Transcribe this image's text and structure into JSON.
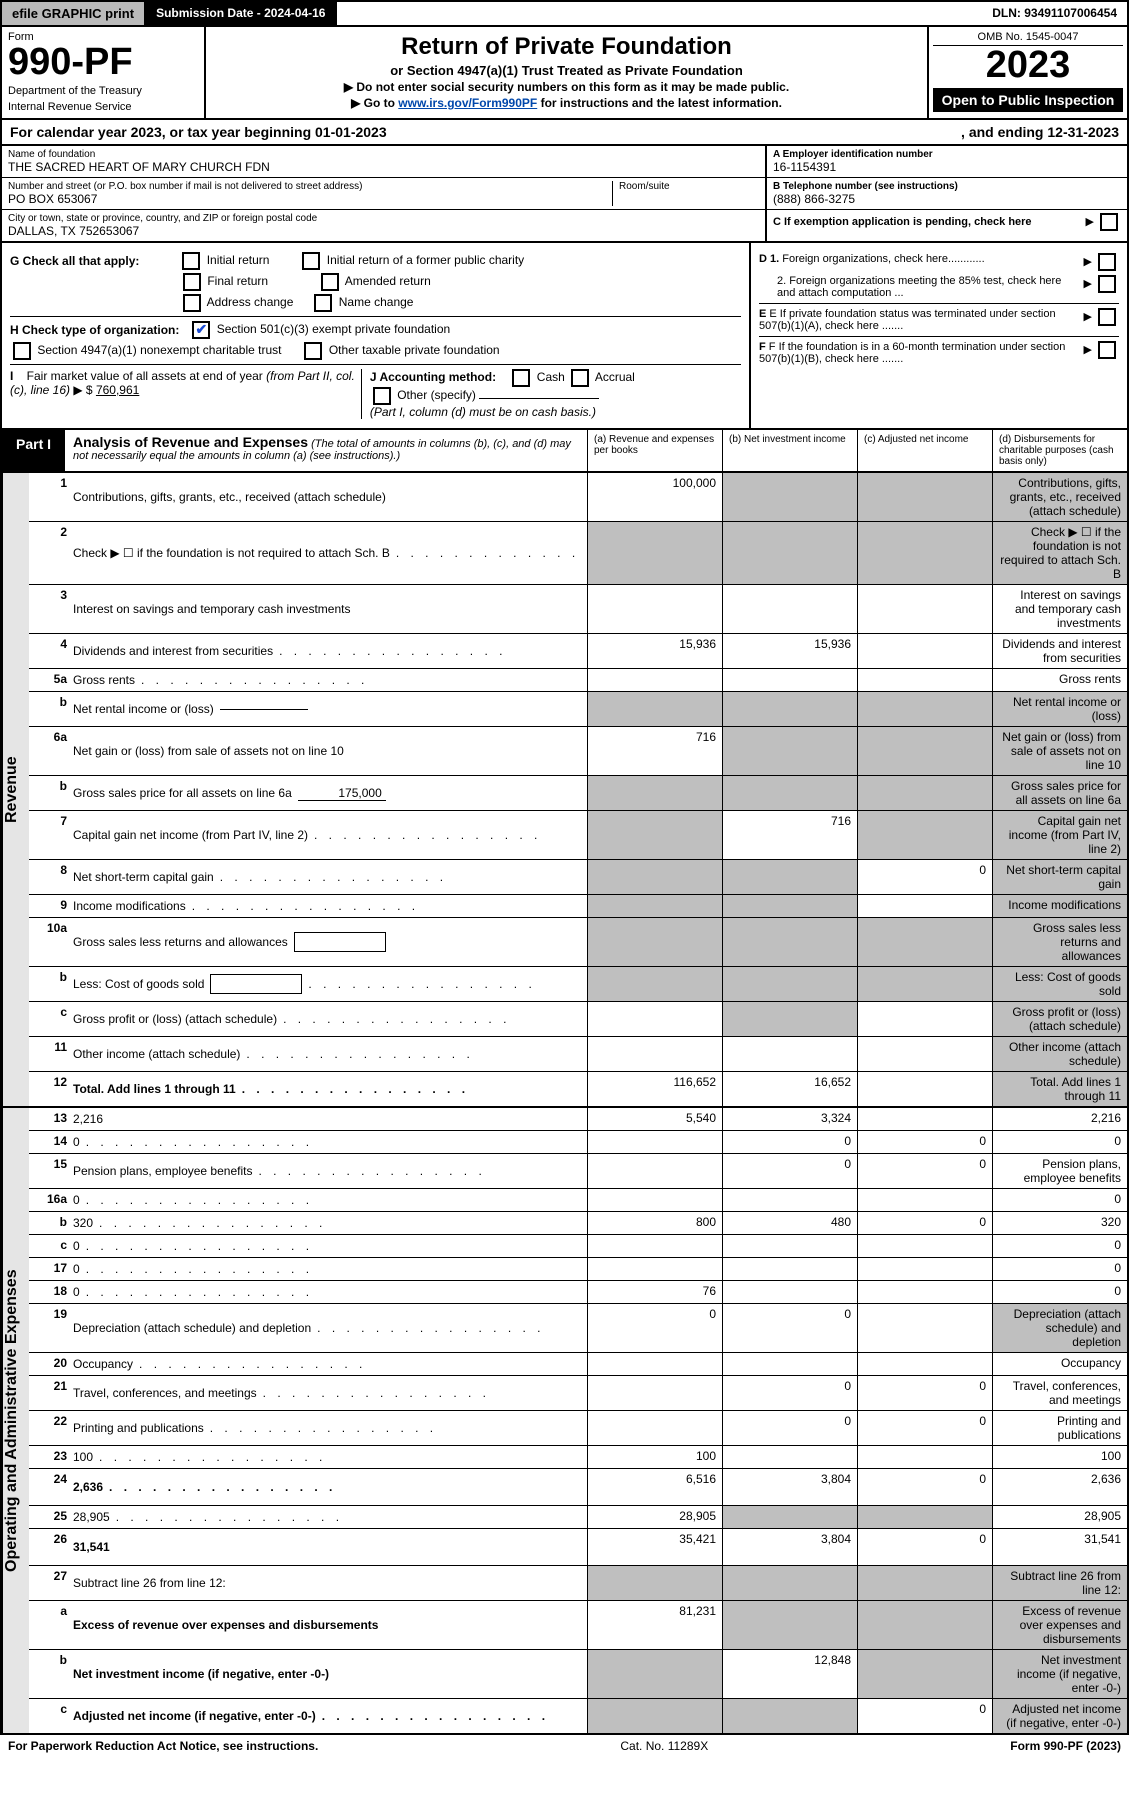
{
  "topbar": {
    "efile": "efile GRAPHIC print",
    "submission": "Submission Date - 2024-04-16",
    "dln": "DLN: 93491107006454"
  },
  "header": {
    "form_word": "Form",
    "form_num": "990-PF",
    "dept": "Department of the Treasury",
    "irs": "Internal Revenue Service",
    "title": "Return of Private Foundation",
    "subtitle": "or Section 4947(a)(1) Trust Treated as Private Foundation",
    "note1": "▶ Do not enter social security numbers on this form as it may be made public.",
    "note2_pre": "▶ Go to ",
    "note2_link": "www.irs.gov/Form990PF",
    "note2_post": " for instructions and the latest information.",
    "omb": "OMB No. 1545-0047",
    "year": "2023",
    "open": "Open to Public Inspection"
  },
  "calyear": {
    "left": "For calendar year 2023, or tax year beginning 01-01-2023",
    "right": ", and ending 12-31-2023"
  },
  "meta": {
    "name_label": "Name of foundation",
    "name": "THE SACRED HEART OF MARY CHURCH FDN",
    "addr_label": "Number and street (or P.O. box number if mail is not delivered to street address)",
    "addr": "PO BOX 653067",
    "room_label": "Room/suite",
    "city_label": "City or town, state or province, country, and ZIP or foreign postal code",
    "city": "DALLAS, TX  752653067",
    "ein_label": "A Employer identification number",
    "ein": "16-1154391",
    "phone_label": "B Telephone number (see instructions)",
    "phone": "(888) 866-3275",
    "c_label": "C If exemption application is pending, check here"
  },
  "checks": {
    "g_lead": "G Check all that apply:",
    "g_items": [
      "Initial return",
      "Initial return of a former public charity",
      "Final return",
      "Amended return",
      "Address change",
      "Name change"
    ],
    "h_lead": "H Check type of organization:",
    "h1": "Section 501(c)(3) exempt private foundation",
    "h2": "Section 4947(a)(1) nonexempt charitable trust",
    "h3": "Other taxable private foundation",
    "i_lead": "I Fair market value of all assets at end of year (from Part II, col. (c), line 16) ▶ $",
    "i_val": "760,961",
    "j_lead": "J Accounting method:",
    "j_cash": "Cash",
    "j_accr": "Accrual",
    "j_other": "Other (specify)",
    "j_note": "(Part I, column (d) must be on cash basis.)",
    "d1": "D 1. Foreign organizations, check here............",
    "d2": "2. Foreign organizations meeting the 85% test, check here and attach computation ...",
    "e": "E If private foundation status was terminated under section 507(b)(1)(A), check here .......",
    "f": "F If the foundation is in a 60-month termination under section 507(b)(1)(B), check here ......."
  },
  "part1": {
    "tab": "Part I",
    "title": "Analysis of Revenue and Expenses",
    "note": "(The total of amounts in columns (b), (c), and (d) may not necessarily equal the amounts in column (a) (see instructions).)",
    "cols": {
      "a": "(a) Revenue and expenses per books",
      "b": "(b) Net investment income",
      "c": "(c) Adjusted net income",
      "d": "(d) Disbursements for charitable purposes (cash basis only)"
    }
  },
  "side": {
    "rev": "Revenue",
    "exp": "Operating and Administrative Expenses"
  },
  "rows": {
    "r1": {
      "n": "1",
      "d": "Contributions, gifts, grants, etc., received (attach schedule)",
      "a": "100,000",
      "shade_b": true,
      "shade_c": true,
      "shade_d": true,
      "tall": true
    },
    "r2": {
      "n": "2",
      "d": "Check ▶ ☐ if the foundation is not required to attach Sch. B",
      "shade_a": true,
      "shade_b": true,
      "shade_c": true,
      "shade_d": true,
      "tall": true,
      "dots": true,
      "bold_not": true
    },
    "r3": {
      "n": "3",
      "d": "Interest on savings and temporary cash investments"
    },
    "r4": {
      "n": "4",
      "d": "Dividends and interest from securities",
      "a": "15,936",
      "b": "15,936",
      "dots": true
    },
    "r5a": {
      "n": "5a",
      "d": "Gross rents",
      "dots": true
    },
    "r5b": {
      "n": "b",
      "d": "Net rental income or (loss)",
      "subinput": true,
      "shade_a": true,
      "shade_b": true,
      "shade_c": true,
      "shade_d": true
    },
    "r6a": {
      "n": "6a",
      "d": "Net gain or (loss) from sale of assets not on line 10",
      "a": "716",
      "shade_b": true,
      "shade_c": true,
      "shade_d": true
    },
    "r6b": {
      "n": "b",
      "d": "Gross sales price for all assets on line 6a",
      "subval": "175,000",
      "shade_a": true,
      "shade_b": true,
      "shade_c": true,
      "shade_d": true
    },
    "r7": {
      "n": "7",
      "d": "Capital gain net income (from Part IV, line 2)",
      "b": "716",
      "shade_a": true,
      "shade_c": true,
      "shade_d": true,
      "dots": true
    },
    "r8": {
      "n": "8",
      "d": "Net short-term capital gain",
      "c": "0",
      "shade_a": true,
      "shade_b": true,
      "shade_d": true,
      "dots": true
    },
    "r9": {
      "n": "9",
      "d": "Income modifications",
      "shade_a": true,
      "shade_b": true,
      "shade_d": true,
      "dots": true
    },
    "r10a": {
      "n": "10a",
      "d": "Gross sales less returns and allowances",
      "inlinebox": true,
      "shade_a": true,
      "shade_b": true,
      "shade_c": true,
      "shade_d": true
    },
    "r10b": {
      "n": "b",
      "d": "Less: Cost of goods sold",
      "inlinebox": true,
      "shade_a": true,
      "shade_b": true,
      "shade_c": true,
      "shade_d": true,
      "dots": true
    },
    "r10c": {
      "n": "c",
      "d": "Gross profit or (loss) (attach schedule)",
      "shade_b": true,
      "shade_d": true,
      "dots": true
    },
    "r11": {
      "n": "11",
      "d": "Other income (attach schedule)",
      "shade_d": true,
      "dots": true
    },
    "r12": {
      "n": "12",
      "d": "Total. Add lines 1 through 11",
      "a": "116,652",
      "b": "16,652",
      "bold": true,
      "shade_d": true,
      "dots": true
    },
    "r13": {
      "n": "13",
      "d": "2,216",
      "a": "5,540",
      "b": "3,324"
    },
    "r14": {
      "n": "14",
      "d": "0",
      "b": "0",
      "c": "0",
      "dots": true
    },
    "r15": {
      "n": "15",
      "d": "Pension plans, employee benefits",
      "b": "0",
      "c": "0",
      "dots": true
    },
    "r16a": {
      "n": "16a",
      "d": "0",
      "dots": true
    },
    "r16b": {
      "n": "b",
      "d": "320",
      "a": "800",
      "b": "480",
      "c": "0",
      "dots": true
    },
    "r16c": {
      "n": "c",
      "d": "0",
      "dots": true
    },
    "r17": {
      "n": "17",
      "d": "0",
      "dots": true
    },
    "r18": {
      "n": "18",
      "d": "0",
      "a": "76",
      "dots": true
    },
    "r19": {
      "n": "19",
      "d": "Depreciation (attach schedule) and depletion",
      "a": "0",
      "b": "0",
      "shade_d": true,
      "dots": true
    },
    "r20": {
      "n": "20",
      "d": "Occupancy",
      "dots": true
    },
    "r21": {
      "n": "21",
      "d": "Travel, conferences, and meetings",
      "b": "0",
      "c": "0",
      "dots": true
    },
    "r22": {
      "n": "22",
      "d": "Printing and publications",
      "b": "0",
      "c": "0",
      "dots": true
    },
    "r23": {
      "n": "23",
      "d": "100",
      "a": "100",
      "dots": true
    },
    "r24": {
      "n": "24",
      "d": "2,636",
      "a": "6,516",
      "b": "3,804",
      "c": "0",
      "bold": true,
      "tall": true,
      "dots": true
    },
    "r25": {
      "n": "25",
      "d": "28,905",
      "a": "28,905",
      "shade_b": true,
      "shade_c": true,
      "dots": true
    },
    "r26": {
      "n": "26",
      "d": "31,541",
      "a": "35,421",
      "b": "3,804",
      "c": "0",
      "bold": true,
      "tall": true
    },
    "r27": {
      "n": "27",
      "d": "Subtract line 26 from line 12:",
      "shade_a": true,
      "shade_b": true,
      "shade_c": true,
      "shade_d": true
    },
    "r27a": {
      "n": "a",
      "d": "Excess of revenue over expenses and disbursements",
      "a": "81,231",
      "bold": true,
      "shade_b": true,
      "shade_c": true,
      "shade_d": true,
      "tall": true
    },
    "r27b": {
      "n": "b",
      "d": "Net investment income (if negative, enter -0-)",
      "b": "12,848",
      "bold": true,
      "shade_a": true,
      "shade_c": true,
      "shade_d": true
    },
    "r27c": {
      "n": "c",
      "d": "Adjusted net income (if negative, enter -0-)",
      "c": "0",
      "bold": true,
      "shade_a": true,
      "shade_b": true,
      "shade_d": true,
      "dots": true
    }
  },
  "rev_rows": [
    "r1",
    "r2",
    "r3",
    "r4",
    "r5a",
    "r5b",
    "r6a",
    "r6b",
    "r7",
    "r8",
    "r9",
    "r10a",
    "r10b",
    "r10c",
    "r11",
    "r12"
  ],
  "exp_rows": [
    "r13",
    "r14",
    "r15",
    "r16a",
    "r16b",
    "r16c",
    "r17",
    "r18",
    "r19",
    "r20",
    "r21",
    "r22",
    "r23",
    "r24",
    "r25",
    "r26",
    "r27",
    "r27a",
    "r27b",
    "r27c"
  ],
  "footer": {
    "left": "For Paperwork Reduction Act Notice, see instructions.",
    "mid": "Cat. No. 11289X",
    "right": "Form 990-PF (2023)"
  }
}
